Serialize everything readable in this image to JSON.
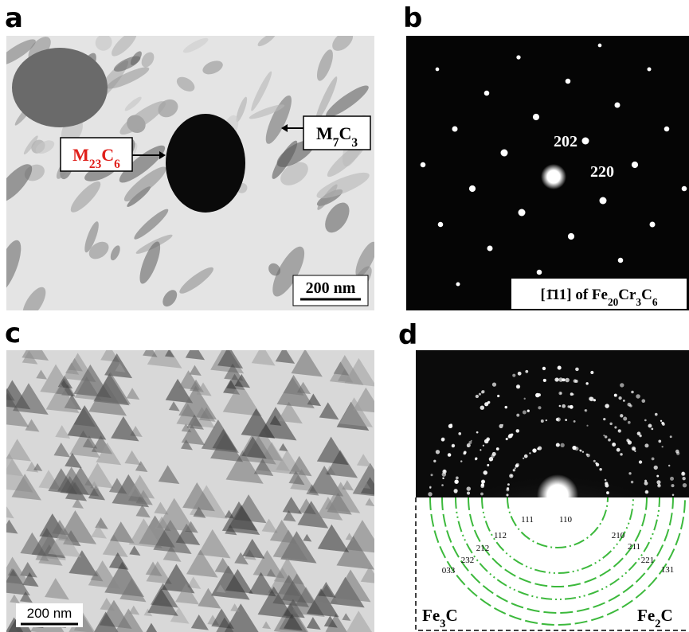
{
  "panels": [
    {
      "letter": "a",
      "label_m23c6": [
        "M",
        "23",
        "C",
        "6"
      ],
      "label_m7c3": [
        "M",
        "7",
        "C",
        "3"
      ],
      "scale_bar": "200 nm"
    },
    {
      "letter": "b",
      "spot_labels": [
        "202",
        "220"
      ],
      "zone_axis": [
        "[1̄11] of Fe",
        "20",
        "Cr",
        "3",
        "C",
        "6"
      ]
    },
    {
      "letter": "c",
      "scale_bar": "200 nm"
    },
    {
      "letter": "d",
      "ring_labels": [
        "111",
        "110",
        "112",
        "210",
        "212",
        "211",
        "232",
        "221",
        "033",
        "131"
      ],
      "phase_left": [
        "Fe",
        "3",
        "C"
      ],
      "phase_right": [
        "Fe",
        "2",
        "C"
      ]
    }
  ]
}
